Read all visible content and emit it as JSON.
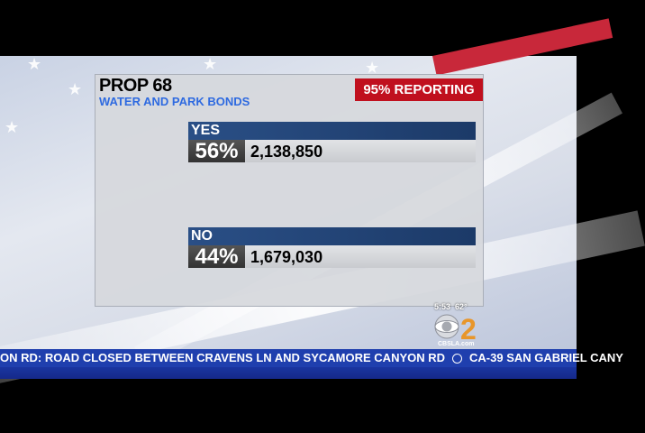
{
  "graphic": {
    "title": "PROP 68",
    "subtitle": "WATER AND PARK BONDS",
    "reporting": "95% REPORTING",
    "results": [
      {
        "label": "YES",
        "percent": "56%",
        "votes": "2,138,850"
      },
      {
        "label": "NO",
        "percent": "44%",
        "votes": "1,679,030"
      }
    ]
  },
  "station": {
    "time": "5:53",
    "temperature": "62°",
    "website": "CBSLA.com",
    "channel": "2"
  },
  "ticker": {
    "items": [
      "ON RD: ROAD CLOSED BETWEEN CRAVENS LN AND SYCAMORE CANYON RD",
      "CA-39 SAN GABRIEL CANY"
    ]
  },
  "colors": {
    "reporting_bg": "#c0101e",
    "subtitle": "#2e6ae0",
    "result_header": "#2a4f86",
    "ticker_bg": "#1f3fae",
    "logo_orange": "#e8962a"
  }
}
